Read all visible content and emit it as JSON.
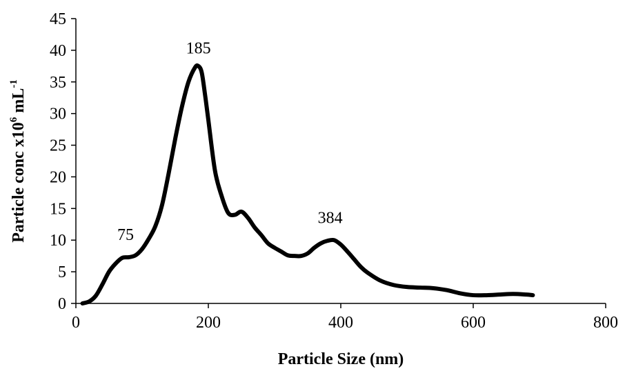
{
  "chart_data": {
    "type": "line",
    "xlabel": "Particle Size (nm)",
    "ylabel": {
      "main": "Particle conc x10",
      "exp1": "6",
      "unit": " mL",
      "exp2": "-1"
    },
    "xlim": [
      0,
      800
    ],
    "ylim": [
      0,
      45
    ],
    "xticks": [
      0,
      200,
      400,
      600,
      800
    ],
    "yticks": [
      0,
      5,
      10,
      15,
      20,
      25,
      30,
      35,
      40,
      45
    ],
    "grid": false,
    "legend": "none",
    "line_color": "#000000",
    "series": [
      {
        "x": [
          10,
          20,
          30,
          40,
          50,
          60,
          70,
          80,
          90,
          100,
          110,
          120,
          130,
          140,
          150,
          160,
          170,
          180,
          185,
          190,
          195,
          200,
          210,
          220,
          230,
          240,
          250,
          260,
          270,
          280,
          290,
          300,
          310,
          320,
          330,
          340,
          350,
          360,
          370,
          380,
          390,
          400,
          410,
          420,
          430,
          440,
          460,
          480,
          500,
          520,
          540,
          560,
          580,
          600,
          620,
          640,
          660,
          680,
          690
        ],
        "y": [
          0,
          0.3,
          1.2,
          3.0,
          5.0,
          6.3,
          7.2,
          7.3,
          7.6,
          8.6,
          10.2,
          12.2,
          15.5,
          20.5,
          26.0,
          31.0,
          35.0,
          37.3,
          37.5,
          36.5,
          33.0,
          29.0,
          21.0,
          17.0,
          14.3,
          14.0,
          14.5,
          13.5,
          12.0,
          10.8,
          9.5,
          8.8,
          8.2,
          7.6,
          7.5,
          7.5,
          7.9,
          8.8,
          9.5,
          9.9,
          10.0,
          9.3,
          8.2,
          7.0,
          5.8,
          4.9,
          3.6,
          2.9,
          2.6,
          2.5,
          2.4,
          2.1,
          1.6,
          1.3,
          1.3,
          1.4,
          1.5,
          1.4,
          1.3
        ]
      }
    ],
    "annotations": [
      {
        "text": "75",
        "x": 75,
        "y": 10.0
      },
      {
        "text": "185",
        "x": 185,
        "y": 39.5
      },
      {
        "text": "384",
        "x": 384,
        "y": 12.7
      }
    ]
  }
}
